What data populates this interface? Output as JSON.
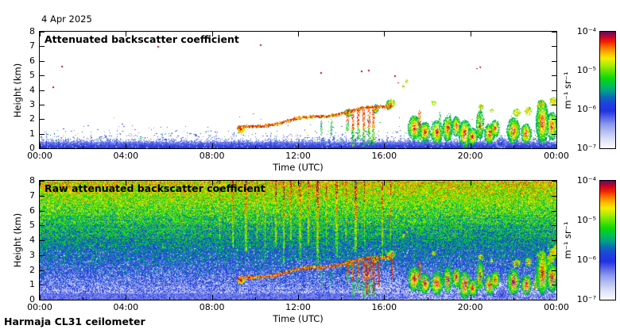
{
  "header": {
    "date_label": "4 Apr 2025"
  },
  "footer": {
    "instrument_label": "Harmaja CL31 ceilometer"
  },
  "axes": {
    "x_axis_label": "Time (UTC)",
    "y_axis_label": "Height (km)",
    "x_major_hours": [
      0,
      4,
      8,
      12,
      16,
      20,
      24
    ],
    "x_major_labels": [
      "00:00",
      "04:00",
      "08:00",
      "12:00",
      "16:00",
      "20:00",
      "00:00"
    ],
    "x_minor_hours": [
      2,
      6,
      10,
      14,
      18,
      22
    ],
    "x_range_hours": [
      0,
      24
    ],
    "y_tick_km": [
      0,
      1,
      2,
      3,
      4,
      5,
      6,
      7,
      8
    ],
    "y_tick_labels": [
      "0",
      "1",
      "2",
      "3",
      "4",
      "5",
      "6",
      "7",
      "8"
    ],
    "y_range_km": [
      0,
      8
    ]
  },
  "colorbar": {
    "unit_label": "m⁻¹ sr⁻¹",
    "tick_labels_top_to_bottom": [
      "10⁻⁴",
      "10⁻⁵",
      "10⁻⁶",
      "10⁻⁷"
    ],
    "scale": "log10",
    "range": [
      "1e-7",
      "1e-4"
    ],
    "stops_bottom_to_top": [
      [
        0.0,
        "#fafaff"
      ],
      [
        0.07,
        "#dfe3f8"
      ],
      [
        0.14,
        "#b7c0f2"
      ],
      [
        0.2,
        "#8f9cec"
      ],
      [
        0.26,
        "#5a68e6"
      ],
      [
        0.32,
        "#2133e0"
      ],
      [
        0.38,
        "#1e40e0"
      ],
      [
        0.44,
        "#0a6ab8"
      ],
      [
        0.49,
        "#009e8a"
      ],
      [
        0.54,
        "#00bf55"
      ],
      [
        0.6,
        "#0bd80b"
      ],
      [
        0.66,
        "#5ce400"
      ],
      [
        0.72,
        "#b5ec00"
      ],
      [
        0.77,
        "#f2ee00"
      ],
      [
        0.82,
        "#ffb400"
      ],
      [
        0.87,
        "#ff6a00"
      ],
      [
        0.91,
        "#f32300"
      ],
      [
        0.95,
        "#cc0425"
      ],
      [
        1.0,
        "#64095c"
      ]
    ]
  },
  "chart_data": [
    {
      "type": "heatmap",
      "title": "Attenuated backscatter coefficient",
      "xlabel": "Time (UTC)",
      "ylabel": "Height (km)",
      "xlim_hours": [
        0,
        24
      ],
      "ylim_km": [
        0,
        8
      ],
      "value_unit": "m⁻¹ sr⁻¹",
      "value_range": [
        "1e-7",
        "1e-4"
      ],
      "background": "#ffffff",
      "features": {
        "seed": 7,
        "surface": {
          "dense_top_km": 0.4,
          "spike_top_km": 1.0
        },
        "specks": {
          "count": 700,
          "base_km": 0.5,
          "scale_km": 0.33,
          "max_km": 2.5
        },
        "aerosol_layer": {
          "t_start": 9.2,
          "t_end": 16.35,
          "h_start": 1.3,
          "h_end": 2.95
        },
        "start_blob": [
          9.35,
          1.3,
          0.17,
          0.25
        ],
        "clouds": [
          [
            17.4,
            1.4,
            0.3,
            0.85
          ],
          [
            17.9,
            1.1,
            0.25,
            0.7
          ],
          [
            18.45,
            1.1,
            0.3,
            0.8
          ],
          [
            18.95,
            1.35,
            0.22,
            0.9
          ],
          [
            19.35,
            1.5,
            0.2,
            0.7
          ],
          [
            19.75,
            1.0,
            0.3,
            0.95
          ],
          [
            20.1,
            0.8,
            0.25,
            0.6
          ],
          [
            20.45,
            1.6,
            0.18,
            1.0
          ],
          [
            20.9,
            1.0,
            0.25,
            0.7
          ],
          [
            21.15,
            1.35,
            0.2,
            0.6
          ],
          [
            22.0,
            1.2,
            0.3,
            0.9
          ],
          [
            22.6,
            1.0,
            0.25,
            0.7
          ],
          [
            23.35,
            1.8,
            0.3,
            1.5
          ],
          [
            23.8,
            1.5,
            0.25,
            1.0
          ],
          [
            14.35,
            2.45,
            0.2,
            0.25
          ],
          [
            15.6,
            2.7,
            0.15,
            0.3
          ],
          [
            16.2,
            2.95,
            0.12,
            0.35
          ]
        ],
        "mid_blobs": [
          [
            16.35,
            3.05,
            0.15,
            0.3
          ],
          [
            18.3,
            3.1,
            0.1,
            0.15
          ],
          [
            20.5,
            2.85,
            0.12,
            0.18
          ],
          [
            21.0,
            2.6,
            0.08,
            0.12
          ],
          [
            22.15,
            2.45,
            0.18,
            0.25
          ],
          [
            22.7,
            2.55,
            0.15,
            0.3
          ],
          [
            23.3,
            3.0,
            0.2,
            0.3
          ],
          [
            23.85,
            3.2,
            0.18,
            0.3
          ],
          [
            16.9,
            4.3,
            0.06,
            0.12
          ],
          [
            17.05,
            4.6,
            0.05,
            0.1
          ]
        ],
        "blue_blob": [
          21.45,
          0.35,
          0.25,
          0.4
        ],
        "green_columns": [
          [
            18.6,
            2.5
          ],
          [
            19.05,
            2.4
          ],
          [
            20.45,
            2.7
          ],
          [
            21.9,
            2.2
          ],
          [
            23.2,
            3.3
          ],
          [
            13.1,
            1.9
          ],
          [
            13.55,
            2.0
          ]
        ],
        "precip": [
          [
            14.3,
            2.5,
            1.2
          ],
          [
            14.55,
            2.6,
            0.2
          ],
          [
            14.8,
            2.6,
            0.6
          ],
          [
            15.05,
            2.65,
            0.15
          ],
          [
            15.3,
            2.7,
            0.3
          ],
          [
            15.5,
            2.75,
            0.25
          ],
          [
            17.65,
            2.6,
            0.4
          ]
        ],
        "high_spots": [
          [
            0.6,
            4.2
          ],
          [
            1.0,
            5.65
          ],
          [
            5.5,
            7.0
          ],
          [
            10.25,
            7.1
          ],
          [
            13.05,
            5.2
          ],
          [
            14.95,
            5.3
          ],
          [
            15.25,
            5.35
          ],
          [
            16.5,
            5.0
          ],
          [
            16.65,
            4.55
          ],
          [
            20.3,
            5.5
          ],
          [
            20.45,
            5.6
          ]
        ]
      }
    },
    {
      "type": "heatmap",
      "title": "Raw attenuated backscatter coefficient",
      "xlabel": "Time (UTC)",
      "ylabel": "Height (km)",
      "xlim_hours": [
        0,
        24
      ],
      "ylim_km": [
        0,
        8
      ],
      "value_unit": "m⁻¹ sr⁻¹",
      "value_range": [
        "1e-7",
        "1e-4"
      ],
      "background": "noise",
      "features": {
        "seed": 11,
        "noise": {
          "v_base": 0.19,
          "v_span": 0.58,
          "jitter": 0.34,
          "ground_f": 0.06
        },
        "streaks_upper": [
          [
            8.35,
            0.5
          ],
          [
            8.95,
            0.45
          ],
          [
            9.55,
            0.4
          ],
          [
            10.1,
            0.5
          ],
          [
            10.45,
            0.35
          ],
          [
            10.95,
            0.45
          ],
          [
            11.3,
            0.3
          ],
          [
            11.65,
            0.5
          ],
          [
            12.05,
            0.35
          ],
          [
            12.45,
            0.45
          ],
          [
            12.85,
            0.3
          ],
          [
            13.3,
            0.45
          ],
          [
            13.75,
            0.35
          ],
          [
            14.25,
            0.5
          ],
          [
            14.65,
            0.4
          ],
          [
            15.1,
            0.45
          ],
          [
            15.9,
            0.35
          ],
          [
            16.3,
            0.5
          ]
        ],
        "red_dips": [
          [
            15.2,
            2.6,
            0.4
          ],
          [
            15.5,
            2.7,
            0.5
          ],
          [
            15.75,
            2.6,
            0.9
          ],
          [
            16.35,
            2.8,
            1.4
          ]
        ],
        "white_gaps": [
          {
            "t0": 16.9,
            "t1": 24.0,
            "h_km": 1.1,
            "prob": 0.3
          },
          {
            "t0": 14.9,
            "t1": 16.7,
            "h_km": 1.9,
            "prob": 0.2
          }
        ],
        "rising_band": {
          "t0": 23.0,
          "t1": 24.0,
          "h0": 1.1,
          "h1": 3.4,
          "half_km": 0.45
        }
      }
    }
  ]
}
